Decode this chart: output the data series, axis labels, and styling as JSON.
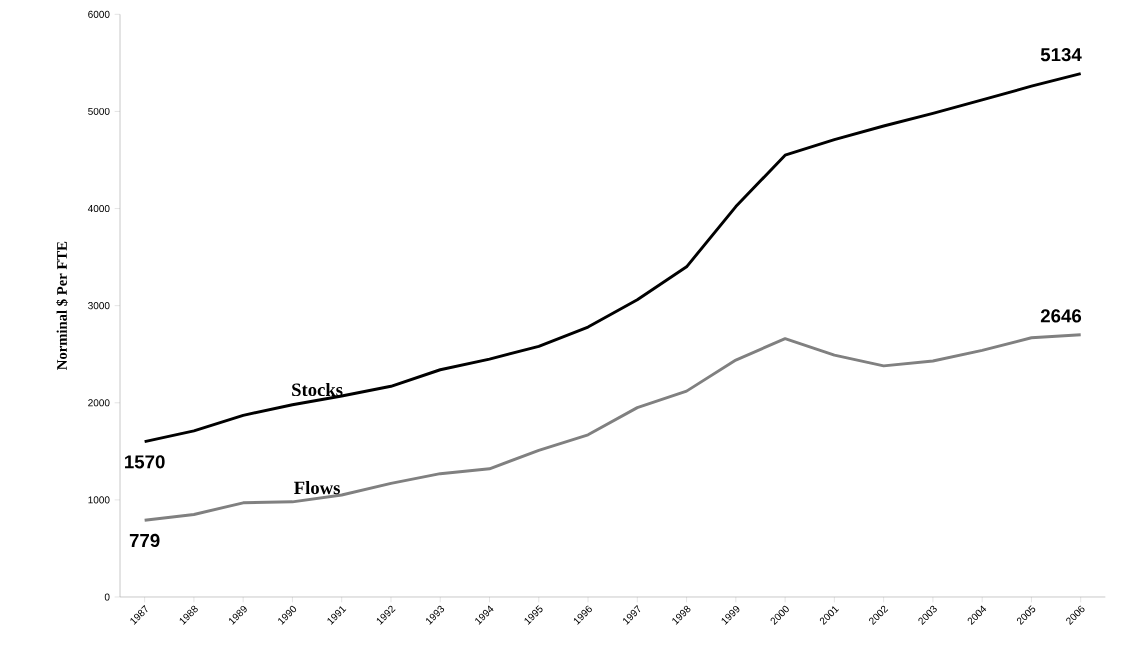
{
  "chart_data": {
    "type": "line",
    "ylabel": "Norminal $ Per FTE",
    "categories": [
      "1987",
      "1988",
      "1989",
      "1990",
      "1991",
      "1992",
      "1993",
      "1994",
      "1995",
      "1996",
      "1997",
      "1998",
      "1999",
      "2000",
      "2001",
      "2002",
      "2003",
      "2004",
      "2005",
      "2006"
    ],
    "series": [
      {
        "name": "Stocks",
        "color": "#000000",
        "values": [
          1600,
          1710,
          1870,
          1980,
          2070,
          2170,
          2340,
          2450,
          2580,
          2780,
          3060,
          3400,
          4020,
          4550,
          4710,
          4850,
          4980,
          5120,
          5260,
          5390
        ]
      },
      {
        "name": "Flows",
        "color": "#808080",
        "values": [
          790,
          850,
          970,
          980,
          1050,
          1170,
          1270,
          1320,
          1510,
          1670,
          1950,
          2120,
          2440,
          2660,
          2490,
          2380,
          2430,
          2540,
          2670,
          2700
        ]
      }
    ],
    "ylim": [
      0,
      6000
    ],
    "yticks": [
      0,
      1000,
      2000,
      3000,
      4000,
      5000,
      6000
    ],
    "annotations": [
      "1570",
      "779",
      "5134",
      "2646"
    ],
    "grid": false,
    "marker": "none",
    "line_style": "solid"
  }
}
